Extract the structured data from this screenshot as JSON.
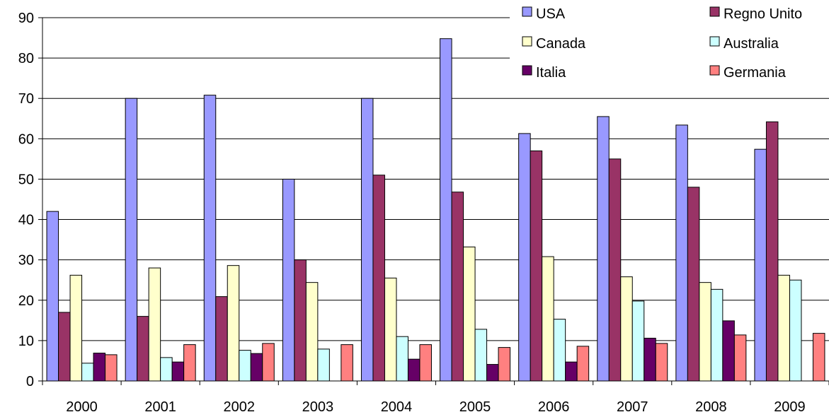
{
  "chart_data": {
    "type": "bar",
    "title": "",
    "xlabel": "",
    "ylabel": "",
    "categories": [
      "2000",
      "2001",
      "2002",
      "2003",
      "2004",
      "2005",
      "2006",
      "2007",
      "2008",
      "2009"
    ],
    "ylim": [
      0,
      90
    ],
    "yticks": [
      "0",
      "10",
      "20",
      "30",
      "40",
      "50",
      "60",
      "70",
      "80",
      "90"
    ],
    "grid": true,
    "legend_position": "top-right",
    "series": [
      {
        "name": "USA",
        "color": "#9999ff",
        "values": [
          42,
          70,
          70.8,
          50,
          70,
          84.8,
          61.3,
          65.5,
          63.4,
          57.4
        ]
      },
      {
        "name": "Regno Unito",
        "color": "#993366",
        "values": [
          17,
          16,
          20.9,
          30,
          51,
          46.8,
          57,
          55,
          48,
          64.2
        ]
      },
      {
        "name": "Canada",
        "color": "#ffffcc",
        "values": [
          26.2,
          28,
          28.6,
          24.4,
          25.5,
          33.2,
          30.8,
          25.8,
          24.4,
          26.2
        ]
      },
      {
        "name": "Australia",
        "color": "#ccffff",
        "values": [
          4.4,
          5.8,
          7.6,
          7.9,
          11,
          12.8,
          15.3,
          19.8,
          22.7,
          25
        ]
      },
      {
        "name": "Italia",
        "color": "#660066",
        "values": [
          6.9,
          4.7,
          6.8,
          null,
          5.4,
          4.1,
          4.7,
          10.6,
          14.9,
          null
        ]
      },
      {
        "name": "Germania",
        "color": "#ff8080",
        "values": [
          6.5,
          9,
          9.3,
          9,
          9,
          8.3,
          8.6,
          9.3,
          11.4,
          11.8
        ]
      }
    ]
  }
}
